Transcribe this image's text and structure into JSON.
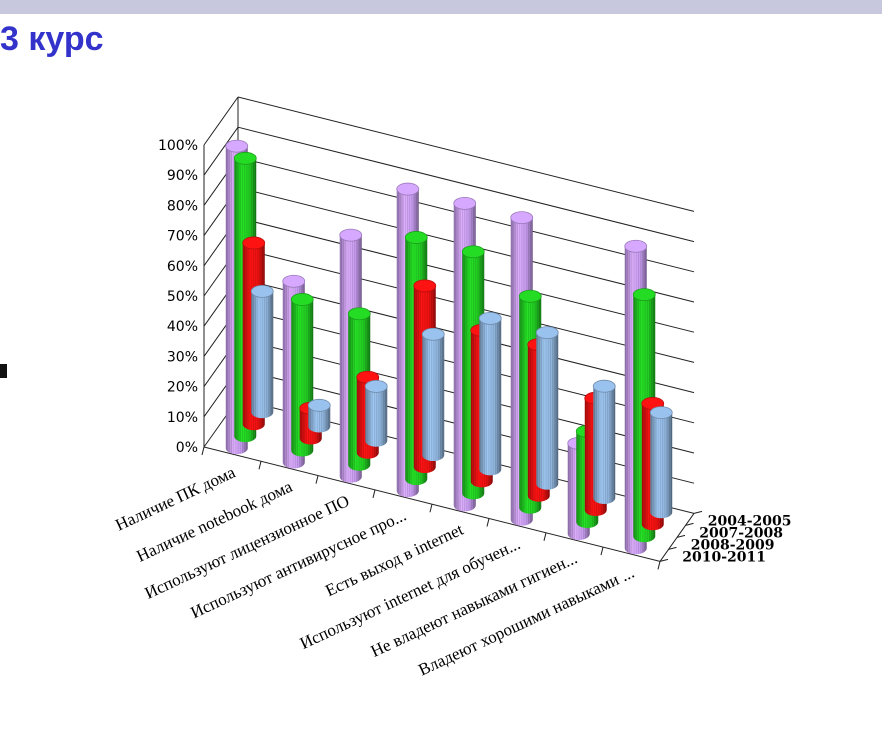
{
  "page": {
    "title": "3 курс"
  },
  "chart_data": {
    "type": "bar",
    "subtype": "3d-column",
    "title": "",
    "xlabel": "",
    "ylabel": "",
    "ylim": [
      0,
      100
    ],
    "yticks": [
      "0%",
      "10%",
      "20%",
      "30%",
      "40%",
      "50%",
      "60%",
      "70%",
      "80%",
      "90%",
      "100%"
    ],
    "grid": true,
    "categories": [
      "Наличие ПК дома",
      "Наличие notebook дома",
      "Используют лицензионное ПО",
      "Используют антивирусное про...",
      "Есть выход в internet",
      "Используют internet для обучен...",
      "Не владеют навыками гигиен...",
      "Владеют хорошими навыками ..."
    ],
    "series": [
      {
        "name": "2004-2005",
        "color": "#8fb4dc",
        "values": [
          40,
          7,
          18,
          40,
          50,
          50,
          37,
          33
        ]
      },
      {
        "name": "2007-2008",
        "color": "#ee1111",
        "values": [
          60,
          10,
          25,
          60,
          50,
          50,
          37,
          40
        ]
      },
      {
        "name": "2008-2009",
        "color": "#22cc22",
        "values": [
          92,
          50,
          50,
          80,
          80,
          70,
          30,
          80
        ]
      },
      {
        "name": "2010-2011",
        "color": "#c79cf0",
        "values": [
          100,
          60,
          80,
          100,
          100,
          100,
          30,
          100
        ]
      }
    ]
  }
}
